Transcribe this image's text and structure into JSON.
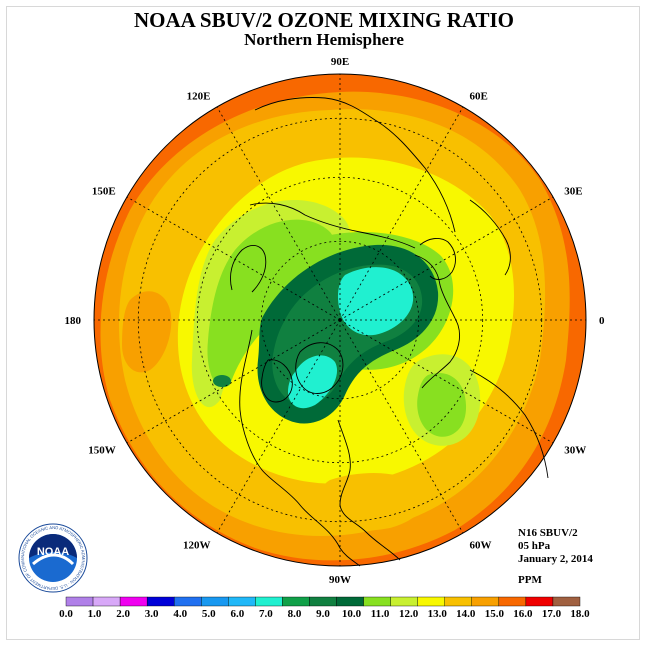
{
  "header": {
    "title": "NOAA SBUV/2 OZONE MIXING RATIO",
    "subtitle": "Northern Hemisphere"
  },
  "longitude_labels": [
    {
      "text": "90E",
      "lon": 90
    },
    {
      "text": "60E",
      "lon": 60
    },
    {
      "text": "30E",
      "lon": 30
    },
    {
      "text": "0",
      "lon": 0
    },
    {
      "text": "30W",
      "lon": -30
    },
    {
      "text": "60W",
      "lon": -60
    },
    {
      "text": "90W",
      "lon": -90
    },
    {
      "text": "120W",
      "lon": -120
    },
    {
      "text": "150W",
      "lon": -150
    },
    {
      "text": "180",
      "lon": 180
    },
    {
      "text": "150E",
      "lon": 150
    },
    {
      "text": "120E",
      "lon": 120
    }
  ],
  "info": {
    "satellite": "N16 SBUV/2",
    "level": "05 hPa",
    "date": "January 2, 2014",
    "units": "PPM"
  },
  "logo": {
    "name": "noaa-logo",
    "text": "NOAA",
    "ring_text": "NATIONAL OCEANIC AND ATMOSPHERIC ADMINISTRATION · U.S. DEPARTMENT OF COMMERCE"
  },
  "colorbar": {
    "labels": [
      "0.0",
      "1.0",
      "2.0",
      "3.0",
      "4.0",
      "5.0",
      "6.0",
      "7.0",
      "8.0",
      "9.0",
      "10.0",
      "11.0",
      "12.0",
      "13.0",
      "14.0",
      "15.0",
      "16.0",
      "17.0",
      "18.0"
    ],
    "colors": [
      "#b080e8",
      "#d8a8f8",
      "#f000f0",
      "#0000d8",
      "#2070f0",
      "#1898f0",
      "#20b8f8",
      "#20f0d0",
      "#10a048",
      "#108040",
      "#006a38",
      "#88e020",
      "#c8f030",
      "#f8f800",
      "#f8c000",
      "#f8a000",
      "#f86800",
      "#f00000",
      "#a06040"
    ]
  }
}
